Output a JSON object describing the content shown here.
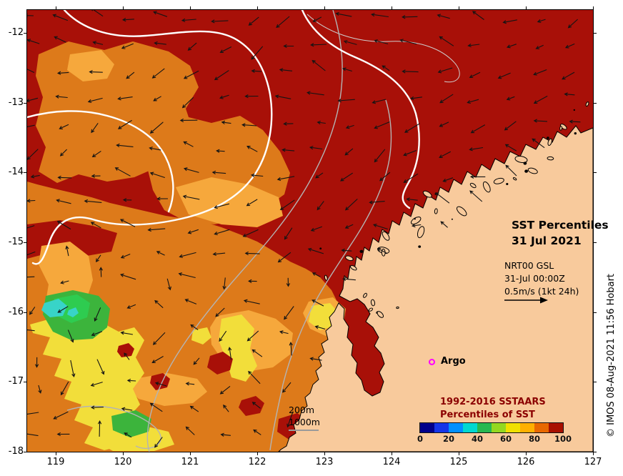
{
  "figure": {
    "title_line1": "SST Percentiles",
    "title_line2": "31 Jul 2021",
    "credit": "© IMOS 08-Aug-2021 11:56 Hobart"
  },
  "product_info": {
    "line1": "NRT00 GSL",
    "line2": "31-Jul 00:00Z",
    "line3": "0.5m/s (1kt 24h)"
  },
  "argo": {
    "label": "Argo",
    "marker_color": "#FF00FF"
  },
  "depth_legend": {
    "line1": "200m",
    "line2": "1000m",
    "line_color": "#9a9a9a"
  },
  "colorbar": {
    "title_line1": "1992-2016 SSTAARS",
    "title_line2": "Percentiles of SST",
    "title_color": "#8B0000",
    "tick_labels": [
      "0",
      "20",
      "40",
      "60",
      "80",
      "100"
    ],
    "colors": [
      "#00008B",
      "#1535E8",
      "#0090FF",
      "#00D8D0",
      "#28B850",
      "#94D820",
      "#F0E000",
      "#FFB000",
      "#E86800",
      "#A81000"
    ]
  },
  "axes": {
    "x_tick_labels": [
      "119",
      "120",
      "121",
      "122",
      "123",
      "124",
      "125",
      "126",
      "127"
    ],
    "y_tick_labels": [
      "-12",
      "-13",
      "-14",
      "-15",
      "-16",
      "-17",
      "-18"
    ]
  },
  "map_colors": {
    "darkred": "#A81008",
    "orange": "#DD7A1A",
    "amber": "#F6A83C",
    "yellow": "#F2DE3A",
    "green": "#3CB43C",
    "green2": "#2ECC50",
    "cyan": "#38D4C8",
    "land": "#F8CA9C"
  }
}
